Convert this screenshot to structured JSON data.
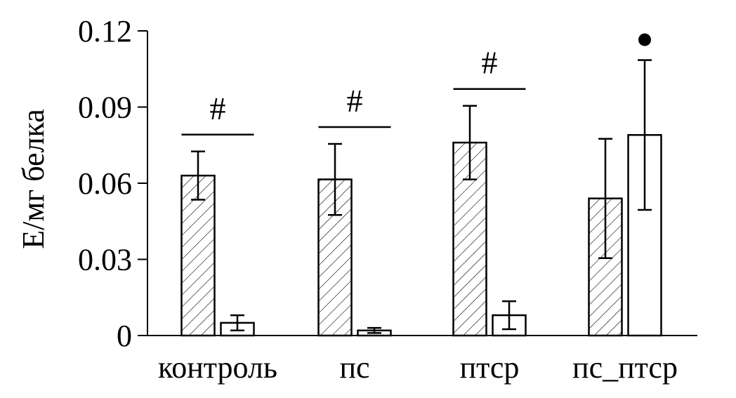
{
  "chart_data": {
    "type": "bar",
    "title": "",
    "xlabel": "",
    "ylabel": "Е/мг белка",
    "ylim": [
      0,
      0.12
    ],
    "yticks": [
      "0",
      "0.03",
      "0.06",
      "0.09",
      "0.12"
    ],
    "categories": [
      "контроль",
      "пс",
      "птср",
      "пс_птср"
    ],
    "legend": "none",
    "grid": false,
    "series": [
      {
        "fill": "hatched",
        "values": [
          0.063,
          0.0615,
          0.076,
          0.054
        ],
        "errors": [
          0.0095,
          0.014,
          0.0145,
          0.0235
        ]
      },
      {
        "fill": "white",
        "values": [
          0.005,
          0.002,
          0.008,
          0.079
        ],
        "errors": [
          0.003,
          0.001,
          0.0055,
          0.0295
        ]
      }
    ],
    "annotations": [
      {
        "category": 0,
        "type": "bracket",
        "text": "#"
      },
      {
        "category": 1,
        "type": "bracket",
        "text": "#"
      },
      {
        "category": 2,
        "type": "bracket",
        "text": "#"
      },
      {
        "category": 3,
        "series": 1,
        "type": "marker",
        "text": "●"
      }
    ]
  }
}
